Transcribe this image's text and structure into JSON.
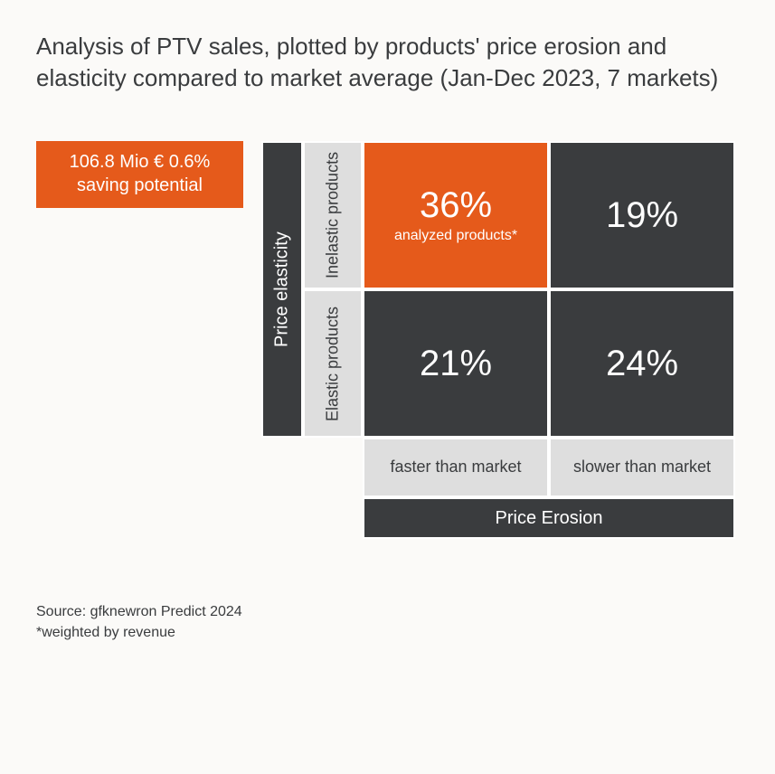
{
  "title": "Analysis of PTV sales, plotted by products' price erosion and elasticity compared to market average (Jan-Dec 2023, 7 markets)",
  "badge": {
    "line1": "106.8 Mio € 0.6%",
    "line2": "saving potential",
    "bg_color": "#e55a1b",
    "text_color": "#ffffff"
  },
  "matrix": {
    "type": "2x2-matrix",
    "y_axis_title": "Price elasticity",
    "y_rows": [
      "Inelastic products",
      "Elastic products"
    ],
    "x_axis_title": "Price Erosion",
    "x_cols": [
      "faster than market",
      "slower than market"
    ],
    "cells": [
      {
        "row": 0,
        "col": 0,
        "value": "36%",
        "sublabel": "analyzed products*",
        "bg_color": "#e55a1b",
        "text_color": "#ffffff"
      },
      {
        "row": 0,
        "col": 1,
        "value": "19%",
        "sublabel": "",
        "bg_color": "#3a3c3e",
        "text_color": "#ffffff"
      },
      {
        "row": 1,
        "col": 0,
        "value": "21%",
        "sublabel": "",
        "bg_color": "#3a3c3e",
        "text_color": "#ffffff"
      },
      {
        "row": 1,
        "col": 1,
        "value": "24%",
        "sublabel": "",
        "bg_color": "#3a3c3e",
        "text_color": "#ffffff"
      }
    ],
    "axis_label_bg": "#dedede",
    "axis_title_bg": "#3a3c3e",
    "value_fontsize": 40,
    "label_fontsize": 18,
    "title_fontsize": 20
  },
  "footnote": {
    "line1": "Source: gfknewron Predict 2024",
    "line2": "*weighted by revenue"
  },
  "page_bg": "#fbfaf8"
}
